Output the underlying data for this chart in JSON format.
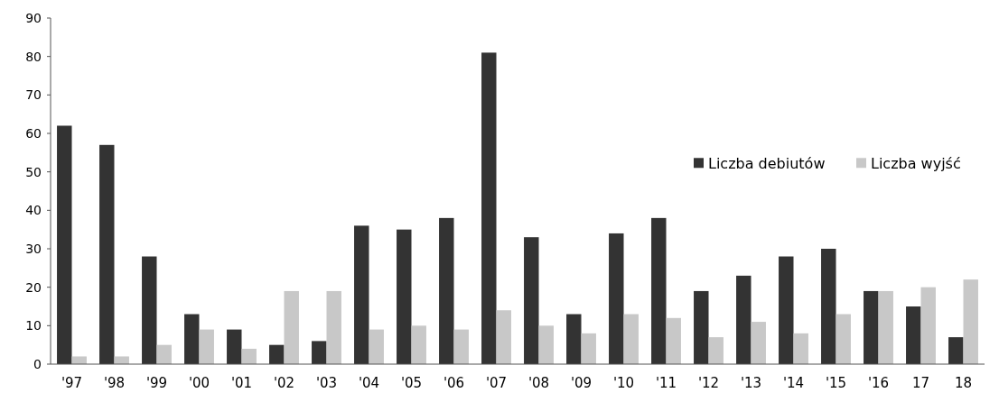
{
  "chart_data": {
    "type": "bar",
    "categories": [
      "'97",
      "'98",
      "'99",
      "'00",
      "'01",
      "'02",
      "'03",
      "'04",
      "'05",
      "'06",
      "'07",
      "'08",
      "'09",
      "'10",
      "'11",
      "'12",
      "'13",
      "'14",
      "'15",
      "'16",
      "17",
      "18"
    ],
    "series": [
      {
        "name": "Liczba debiutów",
        "color": "#333333",
        "values": [
          62,
          57,
          28,
          13,
          9,
          5,
          6,
          36,
          35,
          38,
          81,
          33,
          13,
          34,
          38,
          19,
          23,
          28,
          30,
          19,
          15,
          7
        ]
      },
      {
        "name": "Liczba wyjść",
        "color": "#c8c8c8",
        "values": [
          2,
          2,
          5,
          9,
          4,
          19,
          19,
          9,
          10,
          9,
          14,
          10,
          8,
          13,
          12,
          7,
          11,
          8,
          13,
          19,
          20,
          22
        ]
      }
    ],
    "ylim": [
      0,
      90
    ],
    "yticks": [
      0,
      10,
      20,
      30,
      40,
      50,
      60,
      70,
      80,
      90
    ],
    "legend": "right"
  }
}
